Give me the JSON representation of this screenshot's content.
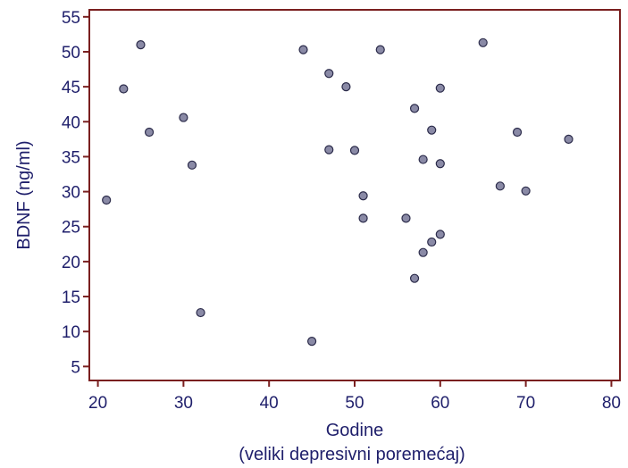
{
  "chart_data": {
    "type": "scatter",
    "title": "",
    "xlabel": "Godine",
    "xlabel_sub": "(veliki depresivni poremećaj)",
    "ylabel": "BDNF (ng/ml)",
    "xlim": [
      19,
      81
    ],
    "ylim": [
      3,
      56
    ],
    "xticks": [
      20,
      30,
      40,
      50,
      60,
      70,
      80
    ],
    "yticks": [
      5,
      10,
      15,
      20,
      25,
      30,
      35,
      40,
      45,
      50,
      55
    ],
    "grid": false,
    "legend": "none",
    "colors": {
      "frame": "#7a1f1f",
      "marker_fill": "#8a8aa6",
      "marker_stroke": "#2b2b4a",
      "text": "#1f1f6b"
    },
    "points": [
      {
        "x": 21,
        "y": 28.8
      },
      {
        "x": 23,
        "y": 44.7
      },
      {
        "x": 25,
        "y": 51.0
      },
      {
        "x": 26,
        "y": 38.5
      },
      {
        "x": 30,
        "y": 40.6
      },
      {
        "x": 31,
        "y": 33.8
      },
      {
        "x": 32,
        "y": 12.7
      },
      {
        "x": 44,
        "y": 50.3
      },
      {
        "x": 45,
        "y": 8.6
      },
      {
        "x": 47,
        "y": 46.9
      },
      {
        "x": 47,
        "y": 36.0
      },
      {
        "x": 49,
        "y": 45.0
      },
      {
        "x": 50,
        "y": 35.9
      },
      {
        "x": 51,
        "y": 29.4
      },
      {
        "x": 51,
        "y": 26.2
      },
      {
        "x": 53,
        "y": 50.3
      },
      {
        "x": 56,
        "y": 26.2
      },
      {
        "x": 57,
        "y": 41.9
      },
      {
        "x": 57,
        "y": 17.6
      },
      {
        "x": 58,
        "y": 34.6
      },
      {
        "x": 58,
        "y": 21.3
      },
      {
        "x": 59,
        "y": 38.8
      },
      {
        "x": 59,
        "y": 22.8
      },
      {
        "x": 60,
        "y": 44.8
      },
      {
        "x": 60,
        "y": 34.0
      },
      {
        "x": 60,
        "y": 23.9
      },
      {
        "x": 65,
        "y": 51.3
      },
      {
        "x": 67,
        "y": 30.8
      },
      {
        "x": 69,
        "y": 38.5
      },
      {
        "x": 70,
        "y": 30.1
      },
      {
        "x": 75,
        "y": 37.5
      }
    ]
  }
}
